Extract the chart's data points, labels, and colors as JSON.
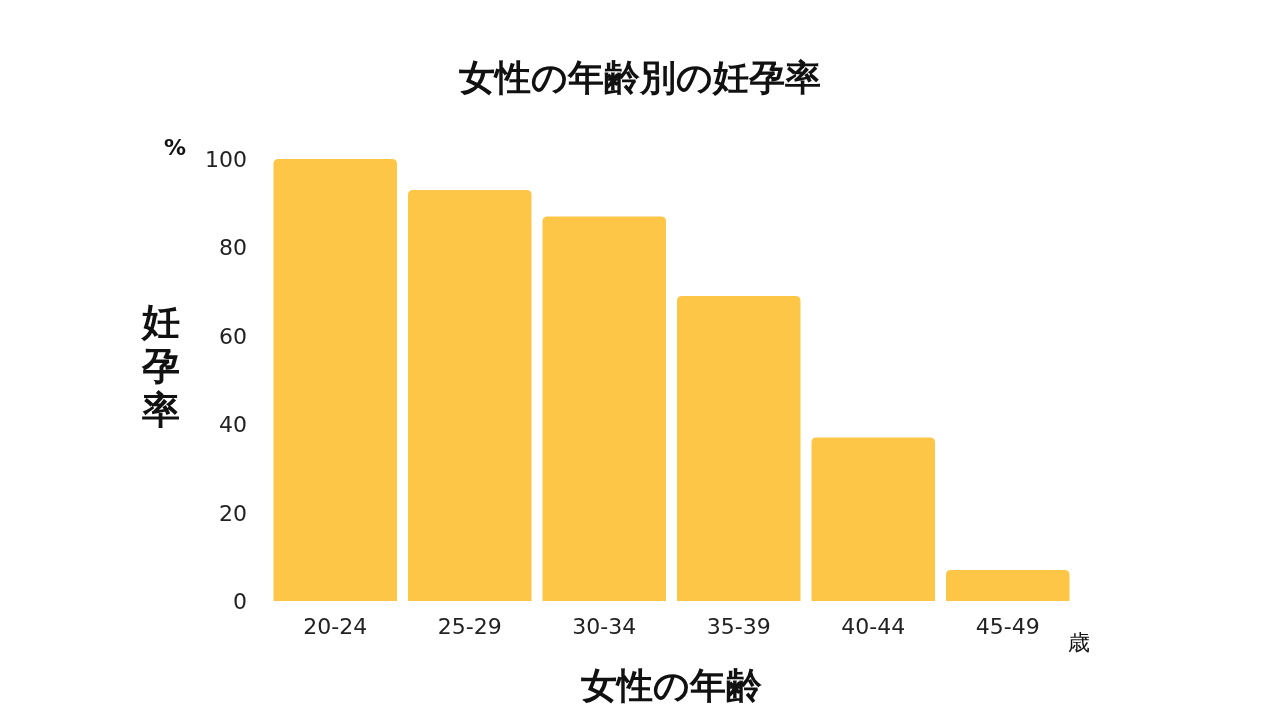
{
  "chart_data": {
    "type": "bar",
    "title": "女性の年齢別の妊孕率",
    "xlabel": "女性の年齢",
    "ylabel": "妊孕率",
    "annotations": [
      "%",
      "歳"
    ],
    "categories": [
      "20-24",
      "25-29",
      "30-34",
      "35-39",
      "40-44",
      "45-49"
    ],
    "values": [
      100,
      93,
      87,
      69,
      37,
      7
    ],
    "color": "#fdc647",
    "ylim": [
      0,
      100
    ],
    "yticks": [
      0,
      20,
      40,
      60,
      80,
      100
    ]
  }
}
